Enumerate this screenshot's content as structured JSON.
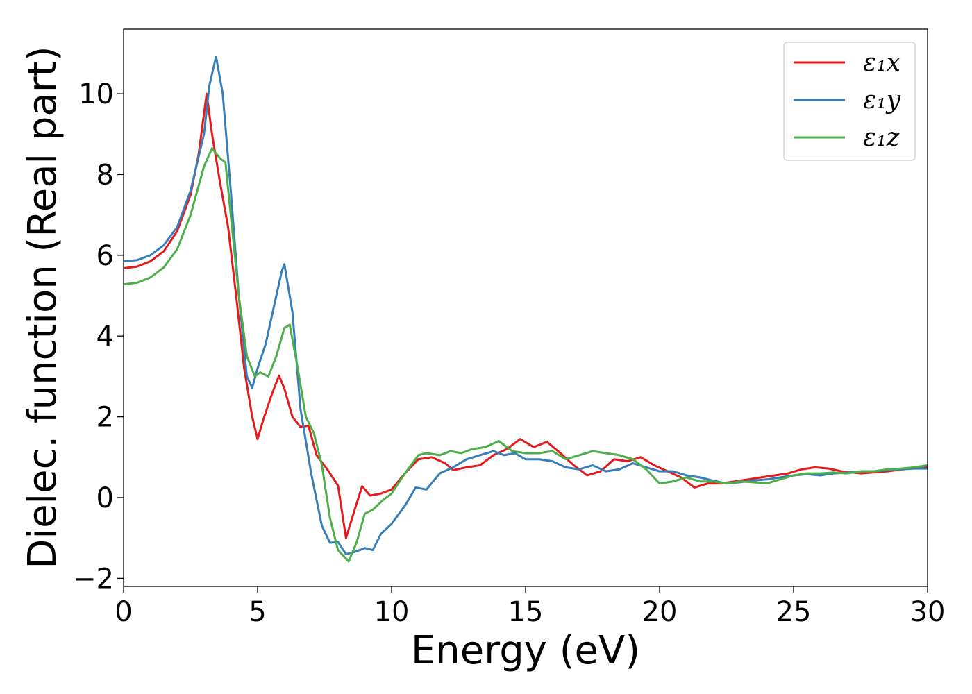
{
  "chart_data": {
    "type": "line",
    "xlabel": "Energy (eV)",
    "ylabel": "Dielec. function (Real part)",
    "xlim": [
      0,
      30
    ],
    "ylim": [
      -2.2,
      11.6
    ],
    "xticks": [
      0,
      5,
      10,
      15,
      20,
      25,
      30
    ],
    "yticks": [
      -2,
      0,
      2,
      4,
      6,
      8,
      10
    ],
    "xtick_labels": [
      "0",
      "5",
      "10",
      "15",
      "20",
      "25",
      "30"
    ],
    "ytick_labels": [
      "−2",
      "0",
      "2",
      "4",
      "6",
      "8",
      "10"
    ],
    "grid": false,
    "legend_position": "top-right",
    "series": [
      {
        "name": "ε₁x",
        "color": "#e41a1c",
        "points": [
          [
            0,
            5.68
          ],
          [
            0.5,
            5.72
          ],
          [
            1.0,
            5.85
          ],
          [
            1.5,
            6.1
          ],
          [
            2.0,
            6.6
          ],
          [
            2.5,
            7.5
          ],
          [
            2.8,
            8.5
          ],
          [
            3.1,
            10.0
          ],
          [
            3.3,
            9.0
          ],
          [
            3.6,
            7.8
          ],
          [
            3.9,
            6.7
          ],
          [
            4.2,
            5.0
          ],
          [
            4.5,
            3.2
          ],
          [
            4.8,
            2.0
          ],
          [
            5.0,
            1.45
          ],
          [
            5.2,
            1.9
          ],
          [
            5.5,
            2.5
          ],
          [
            5.8,
            3.02
          ],
          [
            6.0,
            2.7
          ],
          [
            6.3,
            2.0
          ],
          [
            6.6,
            1.75
          ],
          [
            6.9,
            1.78
          ],
          [
            7.2,
            1.05
          ],
          [
            7.6,
            0.7
          ],
          [
            8.0,
            0.3
          ],
          [
            8.3,
            -1.0
          ],
          [
            8.6,
            -0.35
          ],
          [
            8.9,
            0.28
          ],
          [
            9.2,
            0.05
          ],
          [
            9.6,
            0.1
          ],
          [
            10.0,
            0.2
          ],
          [
            10.5,
            0.6
          ],
          [
            11.0,
            0.95
          ],
          [
            11.5,
            1.0
          ],
          [
            12.0,
            0.85
          ],
          [
            12.3,
            0.68
          ],
          [
            12.8,
            0.75
          ],
          [
            13.3,
            0.8
          ],
          [
            13.8,
            1.05
          ],
          [
            14.3,
            1.2
          ],
          [
            14.8,
            1.45
          ],
          [
            15.3,
            1.25
          ],
          [
            15.8,
            1.38
          ],
          [
            16.3,
            1.1
          ],
          [
            16.8,
            0.8
          ],
          [
            17.3,
            0.55
          ],
          [
            17.8,
            0.65
          ],
          [
            18.3,
            0.95
          ],
          [
            18.8,
            0.9
          ],
          [
            19.3,
            1.0
          ],
          [
            19.8,
            0.8
          ],
          [
            20.3,
            0.65
          ],
          [
            20.8,
            0.5
          ],
          [
            21.3,
            0.25
          ],
          [
            21.8,
            0.35
          ],
          [
            22.3,
            0.35
          ],
          [
            22.8,
            0.4
          ],
          [
            23.3,
            0.45
          ],
          [
            23.8,
            0.5
          ],
          [
            24.3,
            0.55
          ],
          [
            24.8,
            0.6
          ],
          [
            25.3,
            0.7
          ],
          [
            25.8,
            0.75
          ],
          [
            26.3,
            0.72
          ],
          [
            26.8,
            0.65
          ],
          [
            27.5,
            0.6
          ],
          [
            28.5,
            0.65
          ],
          [
            29.3,
            0.72
          ],
          [
            30.0,
            0.75
          ]
        ]
      },
      {
        "name": "ε₁y",
        "color": "#377eb8",
        "points": [
          [
            0,
            5.85
          ],
          [
            0.5,
            5.88
          ],
          [
            1.0,
            6.0
          ],
          [
            1.5,
            6.25
          ],
          [
            2.0,
            6.7
          ],
          [
            2.5,
            7.6
          ],
          [
            3.0,
            9.0
          ],
          [
            3.2,
            10.2
          ],
          [
            3.45,
            10.92
          ],
          [
            3.7,
            10.0
          ],
          [
            4.0,
            7.6
          ],
          [
            4.3,
            5.0
          ],
          [
            4.6,
            3.0
          ],
          [
            4.8,
            2.72
          ],
          [
            5.0,
            3.2
          ],
          [
            5.3,
            3.8
          ],
          [
            5.6,
            4.7
          ],
          [
            5.9,
            5.6
          ],
          [
            6.0,
            5.78
          ],
          [
            6.3,
            4.6
          ],
          [
            6.6,
            2.2
          ],
          [
            7.0,
            0.6
          ],
          [
            7.4,
            -0.7
          ],
          [
            7.7,
            -1.12
          ],
          [
            8.0,
            -1.1
          ],
          [
            8.3,
            -1.4
          ],
          [
            8.6,
            -1.35
          ],
          [
            9.0,
            -1.25
          ],
          [
            9.3,
            -1.3
          ],
          [
            9.6,
            -0.9
          ],
          [
            10.0,
            -0.65
          ],
          [
            10.5,
            -0.2
          ],
          [
            10.9,
            0.25
          ],
          [
            11.3,
            0.2
          ],
          [
            11.8,
            0.6
          ],
          [
            12.3,
            0.75
          ],
          [
            12.8,
            0.95
          ],
          [
            13.3,
            1.05
          ],
          [
            13.8,
            1.15
          ],
          [
            14.2,
            1.05
          ],
          [
            14.6,
            1.1
          ],
          [
            15.0,
            0.95
          ],
          [
            15.5,
            0.95
          ],
          [
            16.0,
            0.9
          ],
          [
            16.5,
            0.75
          ],
          [
            17.0,
            0.7
          ],
          [
            17.5,
            0.8
          ],
          [
            18.0,
            0.65
          ],
          [
            18.5,
            0.7
          ],
          [
            19.0,
            0.85
          ],
          [
            19.5,
            0.75
          ],
          [
            20.0,
            0.65
          ],
          [
            20.5,
            0.65
          ],
          [
            21.0,
            0.55
          ],
          [
            21.5,
            0.5
          ],
          [
            22.0,
            0.42
          ],
          [
            22.5,
            0.35
          ],
          [
            23.0,
            0.38
          ],
          [
            23.5,
            0.42
          ],
          [
            24.0,
            0.45
          ],
          [
            24.5,
            0.5
          ],
          [
            25.0,
            0.55
          ],
          [
            25.5,
            0.58
          ],
          [
            26.0,
            0.55
          ],
          [
            26.5,
            0.6
          ],
          [
            27.0,
            0.62
          ],
          [
            27.5,
            0.65
          ],
          [
            28.0,
            0.65
          ],
          [
            28.5,
            0.68
          ],
          [
            29.0,
            0.7
          ],
          [
            29.5,
            0.72
          ],
          [
            30.0,
            0.72
          ]
        ]
      },
      {
        "name": "ε₁z",
        "color": "#4daf4a",
        "points": [
          [
            0,
            5.28
          ],
          [
            0.5,
            5.32
          ],
          [
            1.0,
            5.45
          ],
          [
            1.5,
            5.7
          ],
          [
            2.0,
            6.15
          ],
          [
            2.5,
            7.0
          ],
          [
            3.0,
            8.2
          ],
          [
            3.3,
            8.65
          ],
          [
            3.6,
            8.4
          ],
          [
            3.8,
            8.3
          ],
          [
            4.0,
            7.0
          ],
          [
            4.3,
            5.0
          ],
          [
            4.6,
            3.5
          ],
          [
            4.9,
            3.0
          ],
          [
            5.1,
            3.1
          ],
          [
            5.4,
            3.0
          ],
          [
            5.7,
            3.5
          ],
          [
            6.0,
            4.2
          ],
          [
            6.2,
            4.28
          ],
          [
            6.5,
            3.2
          ],
          [
            6.8,
            2.0
          ],
          [
            7.1,
            1.6
          ],
          [
            7.4,
            0.8
          ],
          [
            7.7,
            -0.5
          ],
          [
            8.0,
            -1.3
          ],
          [
            8.4,
            -1.58
          ],
          [
            8.7,
            -1.1
          ],
          [
            9.0,
            -0.4
          ],
          [
            9.3,
            -0.3
          ],
          [
            9.7,
            -0.05
          ],
          [
            10.0,
            0.1
          ],
          [
            10.5,
            0.6
          ],
          [
            11.0,
            1.05
          ],
          [
            11.3,
            1.1
          ],
          [
            11.8,
            1.05
          ],
          [
            12.2,
            1.15
          ],
          [
            12.6,
            1.1
          ],
          [
            13.0,
            1.2
          ],
          [
            13.5,
            1.25
          ],
          [
            14.0,
            1.4
          ],
          [
            14.5,
            1.15
          ],
          [
            15.0,
            1.1
          ],
          [
            15.5,
            1.1
          ],
          [
            16.0,
            1.15
          ],
          [
            16.5,
            0.95
          ],
          [
            17.0,
            1.05
          ],
          [
            17.5,
            1.15
          ],
          [
            18.0,
            1.1
          ],
          [
            18.5,
            1.05
          ],
          [
            19.0,
            0.95
          ],
          [
            19.5,
            0.7
          ],
          [
            20.0,
            0.35
          ],
          [
            20.5,
            0.4
          ],
          [
            21.0,
            0.5
          ],
          [
            21.5,
            0.4
          ],
          [
            22.0,
            0.4
          ],
          [
            22.5,
            0.35
          ],
          [
            23.0,
            0.4
          ],
          [
            23.5,
            0.38
          ],
          [
            24.0,
            0.35
          ],
          [
            24.5,
            0.45
          ],
          [
            25.0,
            0.55
          ],
          [
            25.5,
            0.6
          ],
          [
            26.0,
            0.6
          ],
          [
            26.5,
            0.62
          ],
          [
            27.0,
            0.6
          ],
          [
            27.5,
            0.65
          ],
          [
            28.0,
            0.65
          ],
          [
            28.5,
            0.7
          ],
          [
            29.0,
            0.72
          ],
          [
            29.5,
            0.75
          ],
          [
            30.0,
            0.8
          ]
        ]
      }
    ]
  }
}
